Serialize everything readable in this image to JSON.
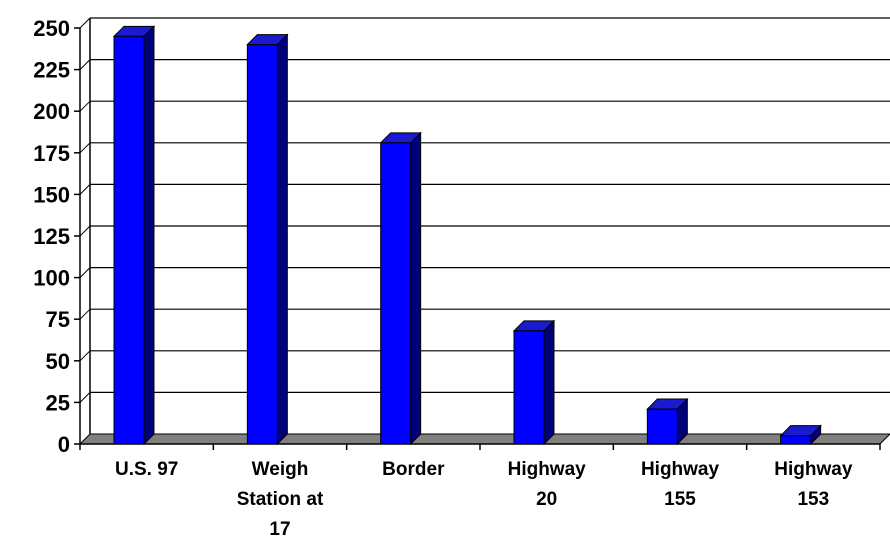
{
  "chart_data": {
    "type": "bar",
    "categories": [
      [
        "U.S. 97"
      ],
      [
        "Weigh",
        "Station at",
        "17"
      ],
      [
        "Border"
      ],
      [
        "Highway",
        "20"
      ],
      [
        "Highway",
        "155"
      ],
      [
        "Highway",
        "153"
      ]
    ],
    "values": [
      245,
      240,
      181,
      68,
      21,
      5
    ],
    "ylim": [
      0,
      250
    ],
    "yticks": [
      "0",
      "25",
      "50",
      "75",
      "100",
      "125",
      "150",
      "175",
      "200",
      "225",
      "250"
    ],
    "grid": true,
    "legend": "none",
    "bar_style": "3d",
    "colors": {
      "bar_front": "#0000ff",
      "bar_side": "#00007a",
      "bar_top": "#1a1ad0",
      "floor": "#808080",
      "grid": "#000000"
    }
  }
}
